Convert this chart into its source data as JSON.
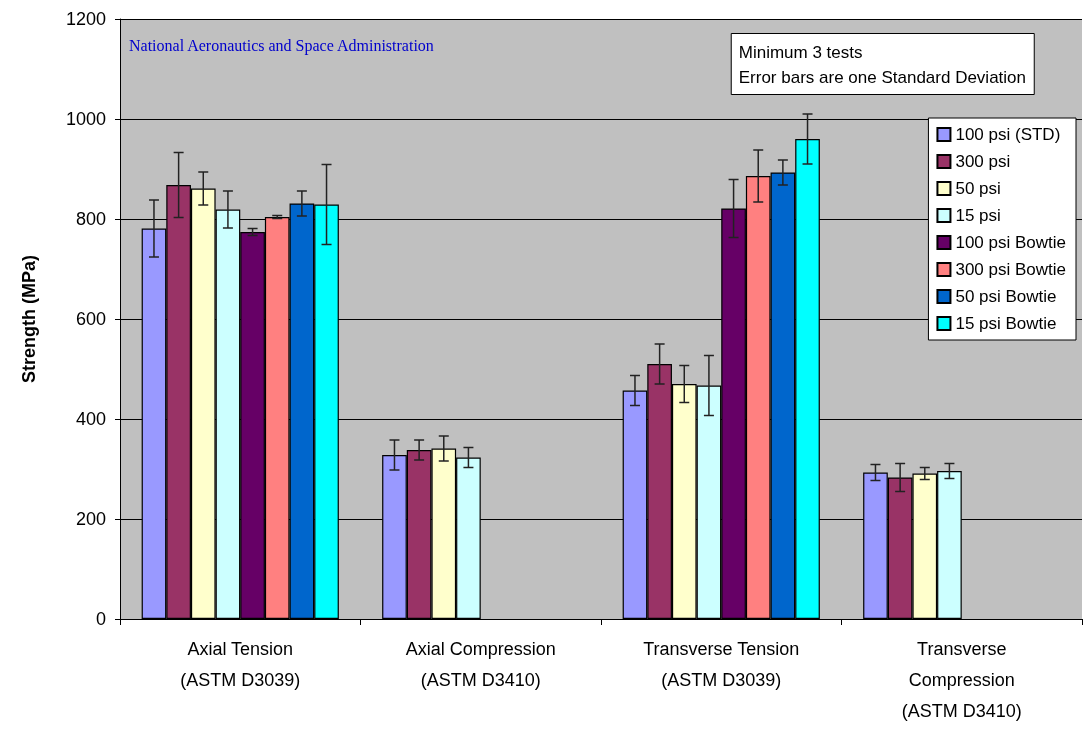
{
  "chart_data": {
    "type": "bar",
    "ylabel": "Strength (MPa)",
    "categories": [
      "Axial Tension\n(ASTM D3039)",
      "Axial Compression\n(ASTM D3410)",
      "Transverse Tension\n(ASTM D3039)",
      "Transverse\nCompression\n(ASTM D3410)"
    ],
    "series": [
      {
        "name": "100 psi (STD)",
        "color": "#9999ff",
        "values": [
          781,
          328,
          457,
          293
        ],
        "errors": [
          57,
          30,
          30,
          16
        ]
      },
      {
        "name": "300 psi",
        "color": "#993366",
        "values": [
          868,
          338,
          510,
          283
        ],
        "errors": [
          65,
          20,
          40,
          28
        ]
      },
      {
        "name": "50 psi",
        "color": "#ffffcc",
        "values": [
          861,
          341,
          470,
          291
        ],
        "errors": [
          33,
          25,
          37,
          12
        ]
      },
      {
        "name": "15 psi",
        "color": "#ccffff",
        "values": [
          819,
          323,
          467,
          296
        ],
        "errors": [
          37,
          20,
          60,
          15
        ]
      },
      {
        "name": "100 psi Bowtie",
        "color": "#660066",
        "values": [
          774,
          null,
          821,
          null
        ],
        "errors": [
          7,
          null,
          58,
          null
        ]
      },
      {
        "name": "300 psi Bowtie",
        "color": "#ff8080",
        "values": [
          804,
          null,
          886,
          null
        ],
        "errors": [
          3,
          null,
          52,
          null
        ]
      },
      {
        "name": "50 psi Bowtie",
        "color": "#0066cc",
        "values": [
          831,
          null,
          893,
          null
        ],
        "errors": [
          25,
          null,
          25,
          null
        ]
      },
      {
        "name": "15 psi Bowtie",
        "color": "#00ffff",
        "values": [
          829,
          null,
          960,
          null
        ],
        "errors": [
          80,
          null,
          50,
          null
        ]
      }
    ],
    "ylim": [
      0,
      1200
    ],
    "yticks": [
      0,
      200,
      400,
      600,
      800,
      1000,
      1200
    ],
    "grid": "y",
    "legend": "right",
    "annotations": [
      "National Aeronautics and Space Administration",
      "Minimum 3 tests",
      "Error bars are one Standard Deviation"
    ]
  }
}
